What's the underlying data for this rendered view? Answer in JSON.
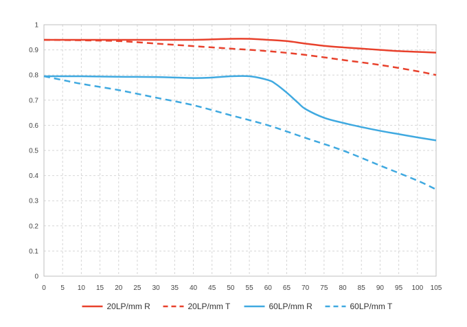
{
  "chart_data": {
    "type": "line",
    "title": "",
    "xlabel": "",
    "ylabel": "",
    "xlim": [
      0,
      105
    ],
    "ylim": [
      0,
      1
    ],
    "x_ticks": [
      "0",
      "5",
      "10",
      "15",
      "20",
      "25",
      "30",
      "35",
      "40",
      "45",
      "50",
      "55",
      "60",
      "65",
      "70",
      "75",
      "80",
      "85",
      "90",
      "95",
      "100",
      "105"
    ],
    "y_ticks": [
      "0",
      "0.1",
      "0.2",
      "0.3",
      "0.4",
      "0.5",
      "0.6",
      "0.7",
      "0.8",
      "0.9",
      "1"
    ],
    "grid": true,
    "legend_position": "bottom",
    "series": [
      {
        "name": "20LP/mm R",
        "color": "#e8412c",
        "style": "solid",
        "x": [
          0,
          10,
          20,
          30,
          40,
          50,
          55,
          60,
          65,
          70,
          75,
          80,
          85,
          90,
          95,
          100,
          105
        ],
        "y": [
          0.94,
          0.94,
          0.94,
          0.94,
          0.94,
          0.944,
          0.944,
          0.94,
          0.935,
          0.925,
          0.916,
          0.91,
          0.905,
          0.9,
          0.895,
          0.892,
          0.889
        ]
      },
      {
        "name": "20LP/mm T",
        "color": "#e8412c",
        "style": "dashed",
        "x": [
          0,
          10,
          20,
          30,
          40,
          50,
          60,
          70,
          80,
          90,
          100,
          105
        ],
        "y": [
          0.94,
          0.938,
          0.935,
          0.925,
          0.915,
          0.905,
          0.895,
          0.88,
          0.86,
          0.84,
          0.815,
          0.8
        ]
      },
      {
        "name": "60LP/mm R",
        "color": "#3fa9e0",
        "style": "solid",
        "x": [
          0,
          10,
          20,
          30,
          40,
          45,
          50,
          55,
          60,
          62,
          65,
          68,
          70,
          75,
          80,
          85,
          90,
          95,
          100,
          105
        ],
        "y": [
          0.795,
          0.795,
          0.793,
          0.792,
          0.788,
          0.79,
          0.795,
          0.795,
          0.78,
          0.765,
          0.73,
          0.69,
          0.665,
          0.63,
          0.61,
          0.593,
          0.578,
          0.565,
          0.552,
          0.54
        ]
      },
      {
        "name": "60LP/mm T",
        "color": "#3fa9e0",
        "style": "dashed",
        "x": [
          0,
          5,
          10,
          20,
          30,
          40,
          50,
          60,
          70,
          80,
          90,
          100,
          105
        ],
        "y": [
          0.795,
          0.78,
          0.765,
          0.74,
          0.71,
          0.68,
          0.64,
          0.6,
          0.55,
          0.5,
          0.44,
          0.38,
          0.345
        ]
      }
    ]
  }
}
